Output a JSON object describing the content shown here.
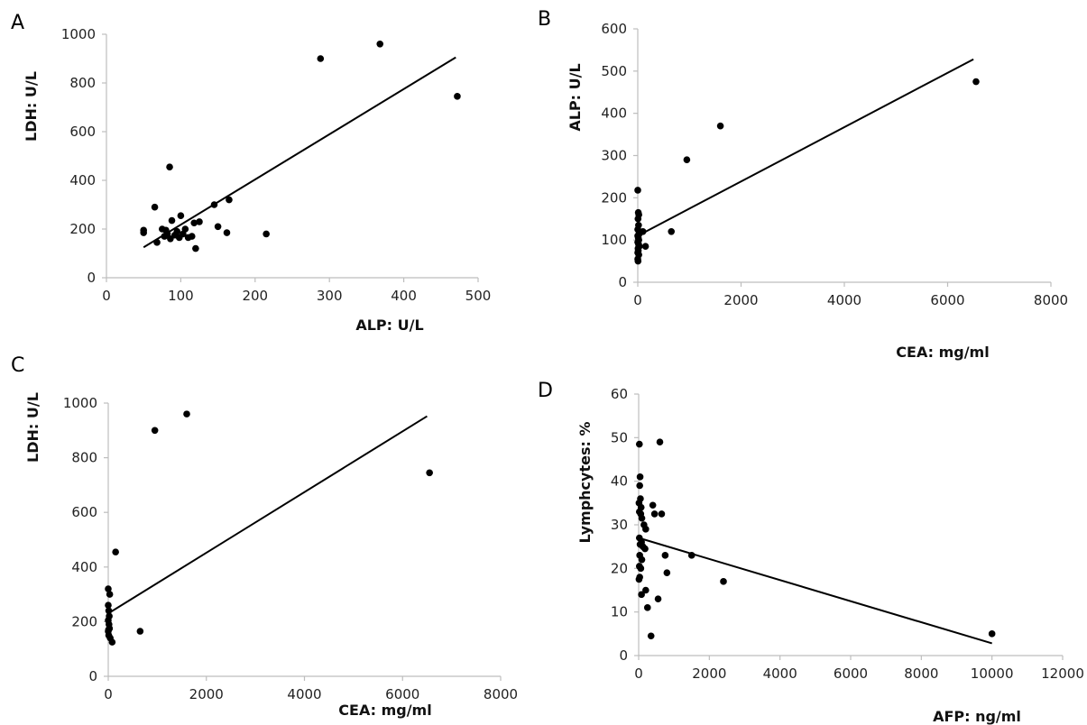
{
  "chart_data": [
    {
      "panel": "A",
      "type": "scatter",
      "xlabel": "ALP: U/L",
      "ylabel": "LDH: U/L",
      "xlim": [
        0,
        500
      ],
      "ylim": [
        0,
        1000
      ],
      "xticks": [
        "0",
        "100",
        "200",
        "300",
        "400",
        "500"
      ],
      "yticks": [
        "0",
        "200",
        "400",
        "600",
        "800",
        "1000"
      ],
      "grid": false,
      "points": [
        [
          50,
          185
        ],
        [
          50,
          195
        ],
        [
          65,
          290
        ],
        [
          68,
          145
        ],
        [
          75,
          200
        ],
        [
          78,
          170
        ],
        [
          80,
          195
        ],
        [
          82,
          180
        ],
        [
          85,
          455
        ],
        [
          86,
          160
        ],
        [
          88,
          235
        ],
        [
          92,
          175
        ],
        [
          95,
          190
        ],
        [
          98,
          165
        ],
        [
          100,
          255
        ],
        [
          103,
          180
        ],
        [
          106,
          200
        ],
        [
          110,
          165
        ],
        [
          115,
          170
        ],
        [
          118,
          225
        ],
        [
          120,
          120
        ],
        [
          125,
          230
        ],
        [
          145,
          300
        ],
        [
          150,
          210
        ],
        [
          162,
          185
        ],
        [
          165,
          320
        ],
        [
          215,
          180
        ],
        [
          288,
          900
        ],
        [
          368,
          960
        ],
        [
          472,
          745
        ]
      ],
      "trendline": [
        [
          50,
          125
        ],
        [
          470,
          905
        ]
      ]
    },
    {
      "panel": "B",
      "type": "scatter",
      "xlabel": "CEA: mg/ml",
      "ylabel": "ALP: U/L",
      "xlim": [
        0,
        8000
      ],
      "ylim": [
        0,
        600
      ],
      "xticks": [
        "0",
        "2000",
        "4000",
        "6000",
        "8000"
      ],
      "yticks": [
        "0",
        "100",
        "200",
        "300",
        "400",
        "500",
        "600"
      ],
      "grid": false,
      "points": [
        [
          0,
          218
        ],
        [
          10,
          165
        ],
        [
          20,
          160
        ],
        [
          5,
          150
        ],
        [
          15,
          135
        ],
        [
          0,
          125
        ],
        [
          25,
          120
        ],
        [
          30,
          115
        ],
        [
          0,
          110
        ],
        [
          10,
          105
        ],
        [
          20,
          100
        ],
        [
          0,
          95
        ],
        [
          15,
          90
        ],
        [
          30,
          85
        ],
        [
          5,
          80
        ],
        [
          10,
          75
        ],
        [
          0,
          70
        ],
        [
          20,
          65
        ],
        [
          0,
          55
        ],
        [
          5,
          50
        ],
        [
          100,
          120
        ],
        [
          150,
          85
        ],
        [
          650,
          120
        ],
        [
          950,
          290
        ],
        [
          1600,
          370
        ],
        [
          6550,
          475
        ]
      ],
      "trendline": [
        [
          0,
          110
        ],
        [
          6500,
          528
        ]
      ]
    },
    {
      "panel": "C",
      "type": "scatter",
      "xlabel": "CEA: mg/ml",
      "ylabel": "LDH: U/L",
      "xlim": [
        0,
        8000
      ],
      "ylim": [
        0,
        1000
      ],
      "xticks": [
        "0",
        "2000",
        "4000",
        "6000",
        "8000"
      ],
      "yticks": [
        "0",
        "200",
        "400",
        "600",
        "800",
        "1000"
      ],
      "grid": false,
      "points": [
        [
          0,
          320
        ],
        [
          30,
          300
        ],
        [
          0,
          260
        ],
        [
          10,
          240
        ],
        [
          20,
          220
        ],
        [
          0,
          205
        ],
        [
          15,
          190
        ],
        [
          25,
          175
        ],
        [
          0,
          165
        ],
        [
          10,
          150
        ],
        [
          40,
          140
        ],
        [
          80,
          125
        ],
        [
          5,
          170
        ],
        [
          150,
          455
        ],
        [
          650,
          165
        ],
        [
          950,
          900
        ],
        [
          1600,
          960
        ],
        [
          6550,
          745
        ]
      ],
      "trendline": [
        [
          0,
          230
        ],
        [
          6500,
          952
        ]
      ]
    },
    {
      "panel": "D",
      "type": "scatter",
      "xlabel": "AFP: ng/ml",
      "ylabel": "Lymphcytes: %",
      "xlim": [
        0,
        12000
      ],
      "ylim": [
        0,
        60
      ],
      "xticks": [
        "0",
        "2000",
        "4000",
        "6000",
        "8000",
        "10000",
        "12000"
      ],
      "yticks": [
        "0",
        "10",
        "20",
        "30",
        "40",
        "50",
        "60"
      ],
      "grid": false,
      "points": [
        [
          20,
          48.5
        ],
        [
          40,
          41
        ],
        [
          30,
          39
        ],
        [
          50,
          36
        ],
        [
          10,
          35
        ],
        [
          70,
          34
        ],
        [
          20,
          33
        ],
        [
          60,
          32.5
        ],
        [
          90,
          31.5
        ],
        [
          150,
          30
        ],
        [
          200,
          29
        ],
        [
          20,
          27
        ],
        [
          80,
          26
        ],
        [
          40,
          25.5
        ],
        [
          120,
          25
        ],
        [
          180,
          24.5
        ],
        [
          30,
          23
        ],
        [
          90,
          22
        ],
        [
          20,
          20.5
        ],
        [
          60,
          20
        ],
        [
          30,
          18
        ],
        [
          10,
          17.5
        ],
        [
          80,
          14
        ],
        [
          200,
          15
        ],
        [
          250,
          11
        ],
        [
          350,
          4.5
        ],
        [
          400,
          34.5
        ],
        [
          450,
          32.5
        ],
        [
          550,
          13
        ],
        [
          600,
          49
        ],
        [
          650,
          32.5
        ],
        [
          750,
          23
        ],
        [
          800,
          19
        ],
        [
          1500,
          23
        ],
        [
          2400,
          17
        ],
        [
          10000,
          5
        ]
      ],
      "trendline": [
        [
          0,
          27
        ],
        [
          10000,
          2.8
        ]
      ]
    }
  ]
}
